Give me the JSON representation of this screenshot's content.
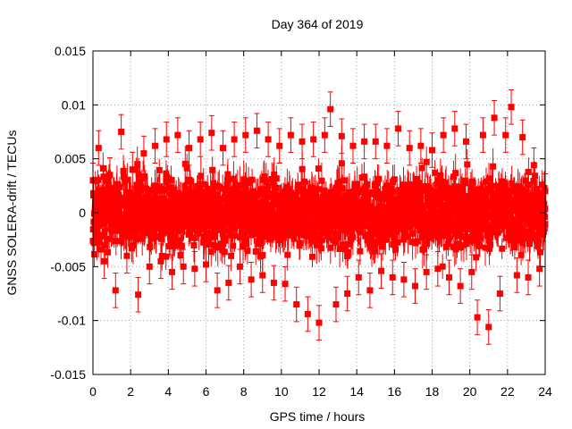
{
  "chart_data": {
    "type": "scatter",
    "title": "Day 364 of 2019",
    "xlabel": "GPS time / hours",
    "ylabel": "GNSS SOLERA-drift / TECUs",
    "xlim": [
      0,
      24
    ],
    "ylim": [
      -0.015,
      0.015
    ],
    "x_ticks": [
      0,
      2,
      4,
      6,
      8,
      10,
      12,
      14,
      16,
      18,
      20,
      22,
      24
    ],
    "x_tick_labels": [
      "0",
      "2",
      "4",
      "6",
      "8",
      "10",
      "12",
      "14",
      "16",
      "18",
      "20",
      "22",
      "24"
    ],
    "y_ticks": [
      -0.015,
      -0.01,
      -0.005,
      0,
      0.005,
      0.01,
      0.015
    ],
    "y_tick_labels": [
      "-0.015",
      "-0.01",
      "-0.005",
      "0",
      "0.005",
      "0.01",
      "0.015"
    ],
    "grid": true,
    "marker": "square",
    "error_bars": true,
    "series_color": "#ff0000",
    "grid_color": "#a0a0a0",
    "series": [
      {
        "name": "SOLERA-drift",
        "x": [
          0.0,
          0.3,
          0.6,
          0.9,
          1.2,
          1.5,
          1.8,
          2.1,
          2.4,
          2.7,
          3.0,
          3.3,
          3.6,
          3.9,
          4.2,
          4.5,
          4.8,
          5.1,
          5.4,
          5.7,
          6.0,
          6.3,
          6.6,
          6.9,
          7.2,
          7.5,
          7.8,
          8.1,
          8.4,
          8.7,
          9.0,
          9.3,
          9.6,
          9.9,
          10.2,
          10.5,
          10.8,
          11.1,
          11.4,
          11.7,
          12.0,
          12.3,
          12.6,
          12.9,
          13.2,
          13.5,
          13.8,
          14.1,
          14.4,
          14.7,
          15.0,
          15.3,
          15.6,
          15.9,
          16.2,
          16.5,
          16.8,
          17.1,
          17.4,
          17.7,
          18.0,
          18.3,
          18.6,
          18.9,
          19.2,
          19.5,
          19.8,
          20.1,
          20.4,
          20.7,
          21.0,
          21.3,
          21.6,
          21.9,
          22.2,
          22.5,
          22.8,
          23.1,
          23.4,
          23.7,
          24.0
        ],
        "y": [
          0.003,
          0.006,
          -0.0045,
          0.0035,
          -0.0072,
          0.0075,
          -0.004,
          0.004,
          -0.0076,
          0.0055,
          -0.005,
          0.0062,
          -0.0045,
          0.0068,
          -0.0055,
          0.0072,
          -0.005,
          0.006,
          -0.0052,
          0.0068,
          -0.0048,
          0.0074,
          -0.0072,
          0.006,
          -0.0065,
          0.0068,
          -0.005,
          0.0072,
          -0.0062,
          0.0076,
          -0.0058,
          0.0068,
          -0.0065,
          0.0062,
          -0.0066,
          0.0072,
          -0.0085,
          0.0066,
          -0.0094,
          0.0068,
          -0.0102,
          0.0072,
          0.0096,
          -0.0085,
          0.0071,
          -0.0075,
          0.0062,
          -0.006,
          0.0066,
          -0.0072,
          0.0066,
          -0.0054,
          0.0062,
          -0.006,
          0.0078,
          -0.0062,
          0.006,
          -0.0068,
          0.0062,
          -0.0055,
          0.0058,
          -0.0052,
          0.0072,
          -0.006,
          0.0078,
          -0.0068,
          0.0066,
          -0.0055,
          -0.0097,
          0.0072,
          -0.0106,
          0.0088,
          -0.0075,
          0.0072,
          0.0098,
          -0.0058,
          0.007,
          -0.006,
          0.0044,
          -0.0052,
          0.002
        ]
      }
    ]
  }
}
